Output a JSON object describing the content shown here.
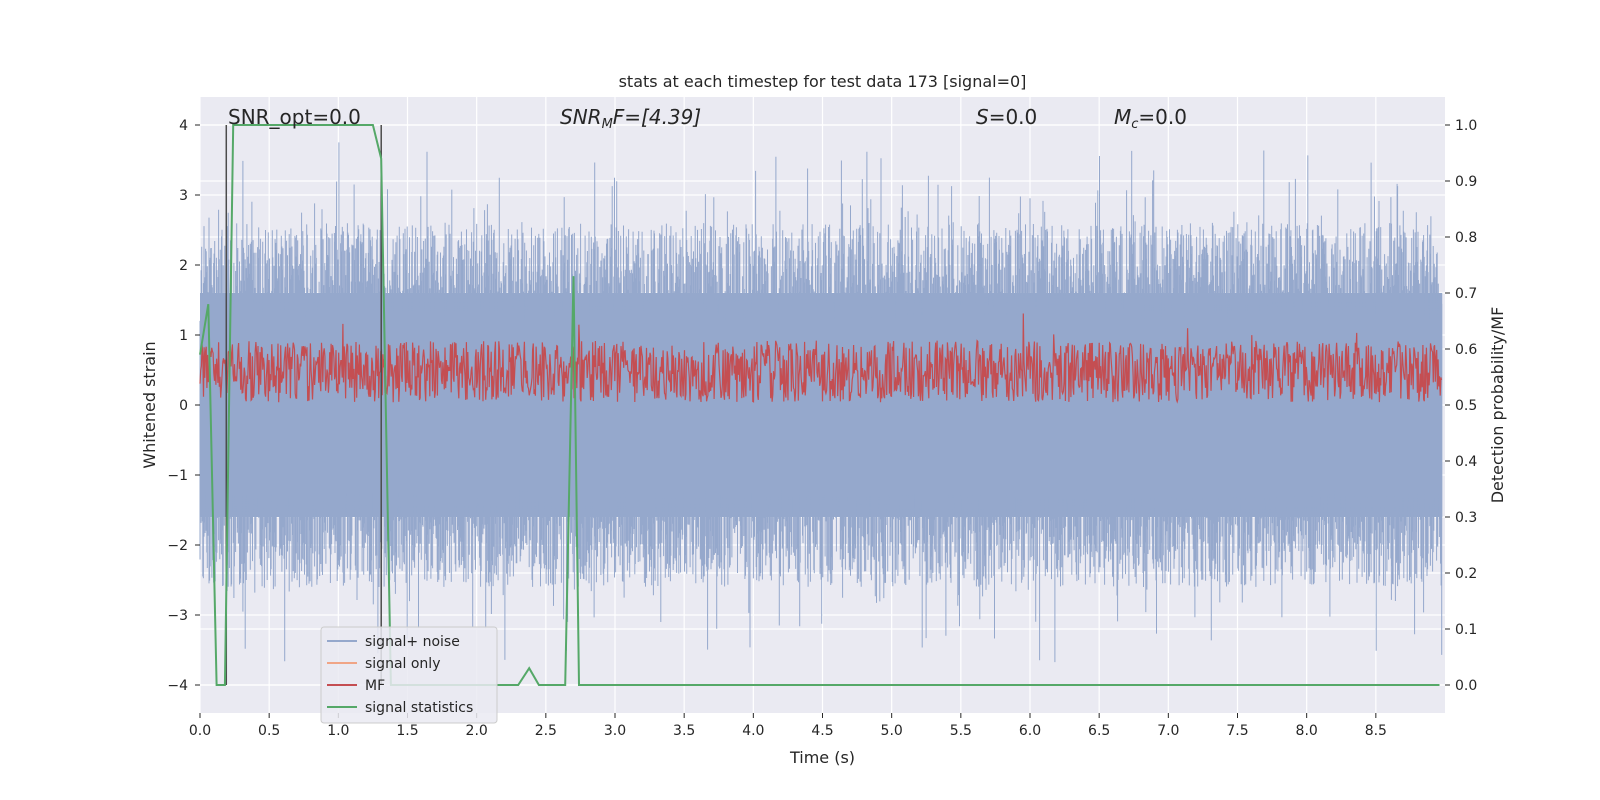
{
  "chart_data": {
    "type": "line",
    "title": "stats at each timestep for test data 173 [signal=0]",
    "xlabel": "Time (s)",
    "ylabel": "Whitened strain",
    "y2label": "Detection probability/MF",
    "xlim": [
      0.0,
      9.0
    ],
    "ylim": [
      -4.4,
      4.4
    ],
    "y2lim": [
      -0.05,
      1.05
    ],
    "x_ticks": [
      "0.0",
      "0.5",
      "1.0",
      "1.5",
      "2.0",
      "2.5",
      "3.0",
      "3.5",
      "4.0",
      "4.5",
      "5.0",
      "5.5",
      "6.0",
      "6.5",
      "7.0",
      "7.5",
      "8.0",
      "8.5"
    ],
    "y_ticks": [
      "4",
      "3",
      "2",
      "1",
      "0",
      "−1",
      "−2",
      "−3",
      "−4"
    ],
    "y2_ticks": [
      "1.0",
      "0.9",
      "0.8",
      "0.7",
      "0.6",
      "0.5",
      "0.4",
      "0.3",
      "0.2",
      "0.1",
      "0.0"
    ],
    "grid": true,
    "legend_position": "lower-left",
    "annotations": {
      "snr_opt": "SNR_opt=0.0",
      "snr_mf": "SNR",
      "snr_mf_sub": "M",
      "snr_mf_rest": "F=[4.39]",
      "s_value": "S",
      "s_rest": "=0.0",
      "mc_value": "M",
      "mc_sub": "c",
      "mc_rest": "=0.0"
    },
    "series": [
      {
        "name": "signal+ noise",
        "color": "#95a8cc",
        "description_envelope_upper": 2.4,
        "description_envelope_lower": -2.4
      },
      {
        "name": "signal only",
        "color": "#f0a586"
      },
      {
        "name": "MF",
        "color": "#c44e52",
        "y2_range": [
          0.5,
          0.63
        ]
      },
      {
        "name": "signal statistics",
        "color": "#55a868",
        "x": [
          0.0,
          0.06,
          0.12,
          0.18,
          0.24,
          0.3,
          0.6,
          1.0,
          1.25,
          1.31,
          1.38,
          1.4,
          1.6,
          2.0,
          2.3,
          2.38,
          2.45,
          2.6,
          2.64,
          2.7,
          2.74,
          2.8,
          3.5,
          5.0,
          7.0,
          8.96
        ],
        "y2": [
          0.59,
          0.68,
          0.0,
          0.0,
          1.0,
          1.0,
          1.0,
          1.0,
          1.0,
          0.94,
          0.0,
          0.0,
          0.0,
          0.0,
          0.0,
          0.03,
          0.0,
          0.0,
          0.0,
          0.73,
          0.0,
          0.0,
          0.0,
          0.0,
          0.0,
          0.0
        ]
      }
    ],
    "vertical_markers": [
      0.19,
      1.31
    ]
  }
}
